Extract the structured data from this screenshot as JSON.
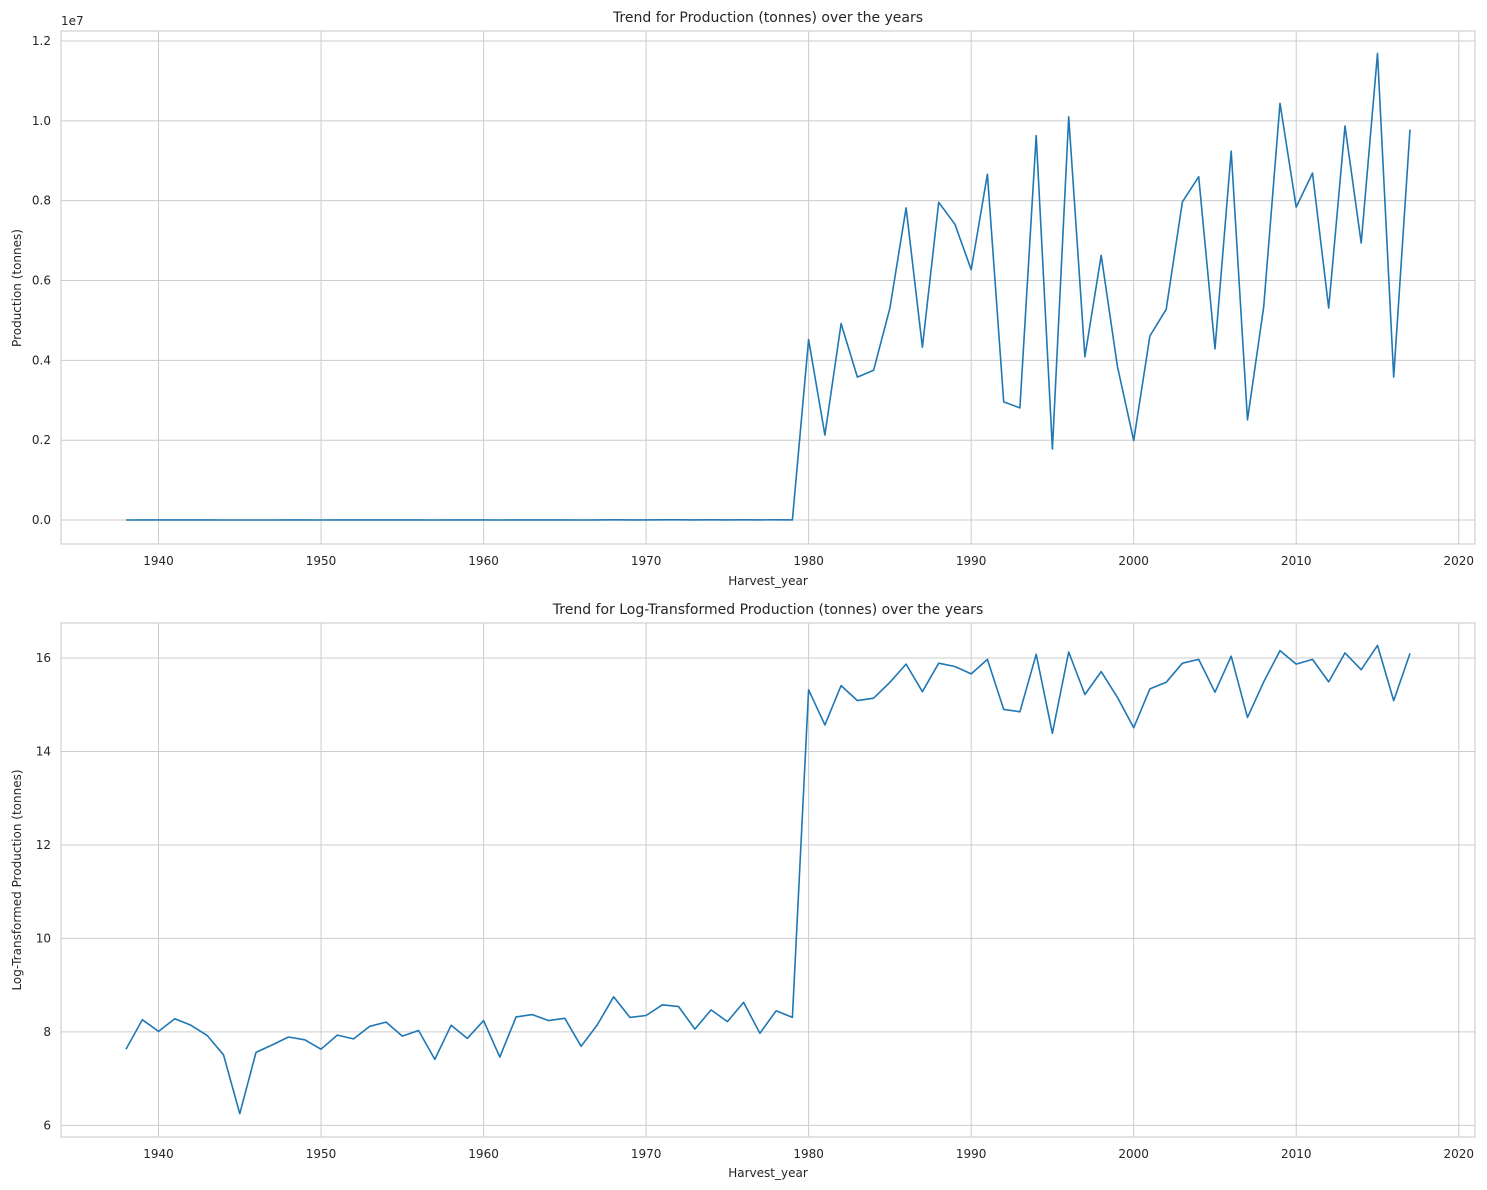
{
  "chart_data": [
    {
      "type": "line",
      "title": "Trend for Production (tonnes) over the years",
      "xlabel": "Harvest_year",
      "ylabel": "Production (tonnes)",
      "y_offset_label": "1e7",
      "xlim": [
        1934,
        2021
      ],
      "ylim": [
        -0.06,
        1.225
      ],
      "y_scale_note": "values in units of 1e7 tonnes",
      "grid": true,
      "color": "#1f77b4",
      "x_ticks": [
        1940,
        1950,
        1960,
        1970,
        1980,
        1990,
        2000,
        2010,
        2020
      ],
      "y_ticks": [
        0.0,
        0.2,
        0.4,
        0.6,
        0.8,
        1.0,
        1.2
      ],
      "y_tick_labels": [
        "0.0",
        "0.2",
        "0.4",
        "0.6",
        "0.8",
        "1.0",
        "1.2"
      ],
      "x": [
        1938,
        1939,
        1940,
        1941,
        1942,
        1943,
        1944,
        1945,
        1946,
        1947,
        1948,
        1949,
        1950,
        1951,
        1952,
        1953,
        1954,
        1955,
        1956,
        1957,
        1958,
        1959,
        1960,
        1961,
        1962,
        1963,
        1964,
        1965,
        1966,
        1967,
        1968,
        1969,
        1970,
        1971,
        1972,
        1973,
        1974,
        1975,
        1976,
        1977,
        1978,
        1979,
        1980,
        1981,
        1982,
        1983,
        1984,
        1985,
        1986,
        1987,
        1988,
        1989,
        1990,
        1991,
        1992,
        1993,
        1994,
        1995,
        1996,
        1997,
        1998,
        1999,
        2000,
        2001,
        2002,
        2003,
        2004,
        2005,
        2006,
        2007,
        2008,
        2009,
        2010,
        2011,
        2012,
        2013,
        2014,
        2015,
        2016,
        2017
      ],
      "y": [
        0.0002,
        0.0004,
        0.0003,
        0.0004,
        0.0003,
        0.0003,
        0.0002,
        5e-05,
        0.0002,
        0.0002,
        0.0003,
        0.0003,
        0.0002,
        0.0003,
        0.0003,
        0.0003,
        0.0004,
        0.0003,
        0.0003,
        0.0002,
        0.0003,
        0.0003,
        0.0004,
        0.0002,
        0.0004,
        0.0004,
        0.0004,
        0.0004,
        0.0002,
        0.0003,
        0.0006,
        0.0004,
        0.0004,
        0.0005,
        0.0005,
        0.0003,
        0.0005,
        0.0004,
        0.0006,
        0.0003,
        0.0005,
        0.0004,
        0.452,
        0.213,
        0.492,
        0.358,
        0.375,
        0.531,
        0.782,
        0.433,
        0.796,
        0.741,
        0.627,
        0.866,
        0.296,
        0.281,
        0.963,
        0.178,
        1.01,
        0.409,
        0.663,
        0.385,
        0.199,
        0.461,
        0.528,
        0.797,
        0.86,
        0.429,
        0.924,
        0.251,
        0.534,
        1.044,
        0.784,
        0.869,
        0.531,
        0.987,
        0.694,
        1.169,
        0.358,
        0.978
      ]
    },
    {
      "type": "line",
      "title": "Trend for Log-Transformed Production (tonnes) over the years",
      "xlabel": "Harvest_year",
      "ylabel": "Log-Transformed Production (tonnes)",
      "xlim": [
        1934,
        2021
      ],
      "ylim": [
        5.75,
        16.75
      ],
      "grid": true,
      "color": "#1f77b4",
      "x_ticks": [
        1940,
        1950,
        1960,
        1970,
        1980,
        1990,
        2000,
        2010,
        2020
      ],
      "y_ticks": [
        6,
        8,
        10,
        12,
        14,
        16
      ],
      "y_tick_labels": [
        "6",
        "8",
        "10",
        "12",
        "14",
        "16"
      ],
      "x": [
        1938,
        1939,
        1940,
        1941,
        1942,
        1943,
        1944,
        1945,
        1946,
        1947,
        1948,
        1949,
        1950,
        1951,
        1952,
        1953,
        1954,
        1955,
        1956,
        1957,
        1958,
        1959,
        1960,
        1961,
        1962,
        1963,
        1964,
        1965,
        1966,
        1967,
        1968,
        1969,
        1970,
        1971,
        1972,
        1973,
        1974,
        1975,
        1976,
        1977,
        1978,
        1979,
        1980,
        1981,
        1982,
        1983,
        1984,
        1985,
        1986,
        1987,
        1988,
        1989,
        1990,
        1991,
        1992,
        1993,
        1994,
        1995,
        1996,
        1997,
        1998,
        1999,
        2000,
        2001,
        2002,
        2003,
        2004,
        2005,
        2006,
        2007,
        2008,
        2009,
        2010,
        2011,
        2012,
        2013,
        2014,
        2015,
        2016,
        2017
      ],
      "y": [
        7.63,
        8.26,
        8.01,
        8.28,
        8.14,
        7.92,
        7.51,
        6.25,
        7.56,
        7.72,
        7.89,
        7.83,
        7.63,
        7.93,
        7.85,
        8.12,
        8.21,
        7.91,
        8.03,
        7.41,
        8.14,
        7.86,
        8.24,
        7.46,
        8.32,
        8.37,
        8.24,
        8.29,
        7.69,
        8.15,
        8.75,
        8.31,
        8.35,
        8.58,
        8.54,
        8.06,
        8.47,
        8.22,
        8.63,
        7.97,
        8.45,
        8.31,
        15.32,
        14.57,
        15.41,
        15.09,
        15.14,
        15.48,
        15.87,
        15.28,
        15.89,
        15.82,
        15.66,
        15.97,
        14.9,
        14.85,
        16.08,
        14.39,
        16.13,
        15.22,
        15.71,
        15.16,
        14.51,
        15.34,
        15.48,
        15.89,
        15.97,
        15.27,
        16.04,
        14.73,
        15.49,
        16.16,
        15.87,
        15.97,
        15.49,
        16.11,
        15.75,
        16.27,
        15.09,
        16.1
      ]
    }
  ]
}
